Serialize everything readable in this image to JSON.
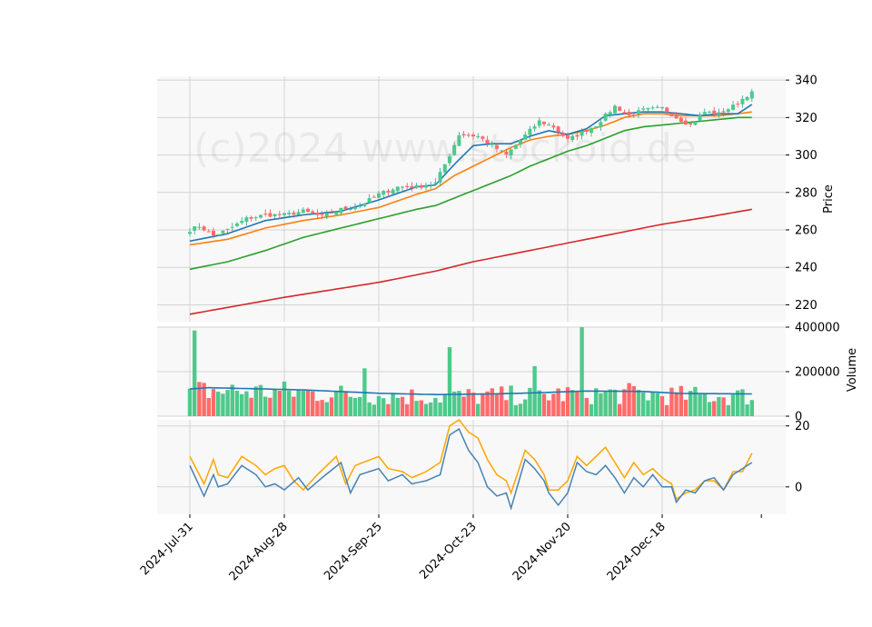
{
  "watermark": "(c)2024 www.stockoid.de",
  "colors": {
    "up": "#26a69a",
    "up_fill": "#4ec98a",
    "down": "#ef5350",
    "down_fill": "#ff6b6b",
    "panel_bg": "#f8f8f8",
    "grid": "#d3d3d3",
    "ma_fast": "#1f77b4",
    "ma_mid": "#ff7f0e",
    "ma_slow": "#2ca02c",
    "ma_long": "#d62728",
    "osc_blue": "#4682b4",
    "osc_orange": "#ffa500",
    "volume_avg": "#1f77b4"
  },
  "chart_data": {
    "type": "candlestick-with-volume-and-oscillator",
    "x_tick_labels": [
      "2024-Jul-31",
      "2024-Aug-28",
      "2024-Sep-25",
      "2024-Oct-23",
      "2024-Nov-20",
      "2024-Dec-18"
    ],
    "x_tick_index": [
      0,
      20,
      40,
      60,
      80,
      100
    ],
    "num_bars": 120,
    "price_panel": {
      "ylabel": "Price",
      "ylim": [
        211,
        342
      ],
      "yticks": [
        220,
        240,
        260,
        280,
        300,
        320,
        340
      ]
    },
    "volume_panel": {
      "ylabel": "Volume",
      "ylim": [
        0,
        400000
      ],
      "yticks": [
        0,
        200000,
        400000
      ]
    },
    "oscillator_panel": {
      "ylim": [
        -9,
        22
      ],
      "yticks": [
        0,
        20
      ]
    },
    "close_anchors": [
      [
        0,
        260
      ],
      [
        2,
        262
      ],
      [
        5,
        257
      ],
      [
        8,
        260
      ],
      [
        12,
        266
      ],
      [
        16,
        268
      ],
      [
        20,
        268
      ],
      [
        24,
        270
      ],
      [
        28,
        267
      ],
      [
        32,
        271
      ],
      [
        36,
        273
      ],
      [
        40,
        279
      ],
      [
        44,
        283
      ],
      [
        48,
        283
      ],
      [
        52,
        285
      ],
      [
        55,
        300
      ],
      [
        57,
        311
      ],
      [
        61,
        310
      ],
      [
        64,
        305
      ],
      [
        67,
        300
      ],
      [
        70,
        308
      ],
      [
        74,
        318
      ],
      [
        77,
        315
      ],
      [
        80,
        308
      ],
      [
        83,
        312
      ],
      [
        86,
        316
      ],
      [
        90,
        326
      ],
      [
        93,
        321
      ],
      [
        96,
        324
      ],
      [
        100,
        325
      ],
      [
        103,
        320
      ],
      [
        106,
        316
      ],
      [
        109,
        323
      ],
      [
        112,
        322
      ],
      [
        115,
        326
      ],
      [
        119,
        334
      ]
    ],
    "ma_fast_anchors": [
      [
        0,
        254
      ],
      [
        8,
        258
      ],
      [
        16,
        265
      ],
      [
        24,
        268
      ],
      [
        32,
        270
      ],
      [
        40,
        276
      ],
      [
        48,
        283
      ],
      [
        52,
        284
      ],
      [
        56,
        295
      ],
      [
        60,
        305
      ],
      [
        64,
        306
      ],
      [
        68,
        306
      ],
      [
        72,
        310
      ],
      [
        76,
        313
      ],
      [
        80,
        311
      ],
      [
        84,
        314
      ],
      [
        88,
        321
      ],
      [
        92,
        322
      ],
      [
        96,
        323
      ],
      [
        100,
        323
      ],
      [
        104,
        322
      ],
      [
        108,
        321
      ],
      [
        112,
        322
      ],
      [
        116,
        322
      ],
      [
        119,
        327
      ]
    ],
    "ma_mid_anchors": [
      [
        0,
        252
      ],
      [
        8,
        255
      ],
      [
        16,
        261
      ],
      [
        24,
        265
      ],
      [
        32,
        268
      ],
      [
        40,
        272
      ],
      [
        48,
        279
      ],
      [
        52,
        282
      ],
      [
        56,
        289
      ],
      [
        60,
        294
      ],
      [
        64,
        299
      ],
      [
        68,
        304
      ],
      [
        72,
        308
      ],
      [
        76,
        310
      ],
      [
        80,
        311
      ],
      [
        84,
        313
      ],
      [
        88,
        316
      ],
      [
        92,
        320
      ],
      [
        96,
        322
      ],
      [
        100,
        322
      ],
      [
        104,
        321
      ],
      [
        108,
        321
      ],
      [
        112,
        321
      ],
      [
        116,
        322
      ],
      [
        119,
        323
      ]
    ],
    "ma_slow_anchors": [
      [
        0,
        239
      ],
      [
        8,
        243
      ],
      [
        16,
        249
      ],
      [
        24,
        256
      ],
      [
        32,
        261
      ],
      [
        40,
        266
      ],
      [
        48,
        271
      ],
      [
        52,
        273
      ],
      [
        56,
        277
      ],
      [
        60,
        281
      ],
      [
        64,
        285
      ],
      [
        68,
        289
      ],
      [
        72,
        294
      ],
      [
        76,
        298
      ],
      [
        80,
        302
      ],
      [
        84,
        305
      ],
      [
        88,
        309
      ],
      [
        92,
        313
      ],
      [
        96,
        315
      ],
      [
        100,
        316
      ],
      [
        104,
        317
      ],
      [
        108,
        318
      ],
      [
        112,
        319
      ],
      [
        116,
        320
      ],
      [
        119,
        320
      ]
    ],
    "ma_long_anchors": [
      [
        0,
        215
      ],
      [
        20,
        224
      ],
      [
        40,
        232
      ],
      [
        52,
        238
      ],
      [
        60,
        243
      ],
      [
        70,
        248
      ],
      [
        80,
        253
      ],
      [
        90,
        258
      ],
      [
        100,
        263
      ],
      [
        110,
        267
      ],
      [
        119,
        271
      ]
    ],
    "volume_avg_anchors": [
      [
        0,
        122000
      ],
      [
        4,
        128000
      ],
      [
        24,
        118000
      ],
      [
        40,
        103000
      ],
      [
        52,
        97000
      ],
      [
        64,
        100000
      ],
      [
        72,
        104000
      ],
      [
        84,
        113000
      ],
      [
        96,
        111000
      ],
      [
        104,
        102000
      ],
      [
        119,
        100000
      ]
    ],
    "osc_blue_anchors": [
      [
        0,
        7
      ],
      [
        3,
        -3
      ],
      [
        5,
        4
      ],
      [
        6,
        0
      ],
      [
        8,
        1
      ],
      [
        11,
        7
      ],
      [
        14,
        4
      ],
      [
        16,
        0
      ],
      [
        18,
        1
      ],
      [
        20,
        -1
      ],
      [
        23,
        3
      ],
      [
        25,
        -1
      ],
      [
        28,
        3
      ],
      [
        32,
        8
      ],
      [
        34,
        -2
      ],
      [
        36,
        4
      ],
      [
        40,
        6
      ],
      [
        42,
        2
      ],
      [
        45,
        4
      ],
      [
        47,
        1
      ],
      [
        50,
        2
      ],
      [
        53,
        4
      ],
      [
        55,
        17
      ],
      [
        57,
        19
      ],
      [
        59,
        12
      ],
      [
        61,
        8
      ],
      [
        63,
        0
      ],
      [
        65,
        -3
      ],
      [
        67,
        -2
      ],
      [
        68,
        -7
      ],
      [
        71,
        9
      ],
      [
        73,
        6
      ],
      [
        75,
        2
      ],
      [
        76,
        -2
      ],
      [
        78,
        -6
      ],
      [
        80,
        -2
      ],
      [
        82,
        8
      ],
      [
        84,
        5
      ],
      [
        86,
        4
      ],
      [
        88,
        7
      ],
      [
        90,
        3
      ],
      [
        92,
        -2
      ],
      [
        94,
        3
      ],
      [
        96,
        0
      ],
      [
        98,
        4
      ],
      [
        100,
        0
      ],
      [
        102,
        0
      ],
      [
        103,
        -5
      ],
      [
        105,
        -1
      ],
      [
        107,
        -2
      ],
      [
        109,
        2
      ],
      [
        111,
        3
      ],
      [
        113,
        -1
      ],
      [
        115,
        4
      ],
      [
        117,
        6
      ],
      [
        119,
        8
      ]
    ],
    "osc_orange_anchors": [
      [
        0,
        10
      ],
      [
        3,
        1
      ],
      [
        5,
        9
      ],
      [
        6,
        4
      ],
      [
        8,
        3
      ],
      [
        11,
        10
      ],
      [
        14,
        7
      ],
      [
        16,
        4
      ],
      [
        18,
        6
      ],
      [
        20,
        7
      ],
      [
        22,
        2
      ],
      [
        24,
        -1
      ],
      [
        27,
        4
      ],
      [
        31,
        10
      ],
      [
        33,
        1
      ],
      [
        35,
        7
      ],
      [
        40,
        10
      ],
      [
        42,
        6
      ],
      [
        45,
        5
      ],
      [
        47,
        3
      ],
      [
        50,
        5
      ],
      [
        53,
        8
      ],
      [
        55,
        20
      ],
      [
        57,
        22
      ],
      [
        59,
        18
      ],
      [
        61,
        16
      ],
      [
        63,
        9
      ],
      [
        65,
        4
      ],
      [
        67,
        2
      ],
      [
        68,
        -2
      ],
      [
        71,
        12
      ],
      [
        73,
        9
      ],
      [
        75,
        4
      ],
      [
        76,
        -1
      ],
      [
        78,
        -1
      ],
      [
        80,
        2
      ],
      [
        82,
        10
      ],
      [
        84,
        7
      ],
      [
        86,
        10
      ],
      [
        88,
        13
      ],
      [
        90,
        8
      ],
      [
        92,
        3
      ],
      [
        94,
        8
      ],
      [
        96,
        4
      ],
      [
        98,
        6
      ],
      [
        100,
        3
      ],
      [
        102,
        1
      ],
      [
        103,
        -4
      ],
      [
        105,
        -2
      ],
      [
        107,
        -1
      ],
      [
        109,
        2
      ],
      [
        111,
        2
      ],
      [
        113,
        -1
      ],
      [
        115,
        5
      ],
      [
        117,
        5
      ],
      [
        119,
        11
      ]
    ]
  }
}
